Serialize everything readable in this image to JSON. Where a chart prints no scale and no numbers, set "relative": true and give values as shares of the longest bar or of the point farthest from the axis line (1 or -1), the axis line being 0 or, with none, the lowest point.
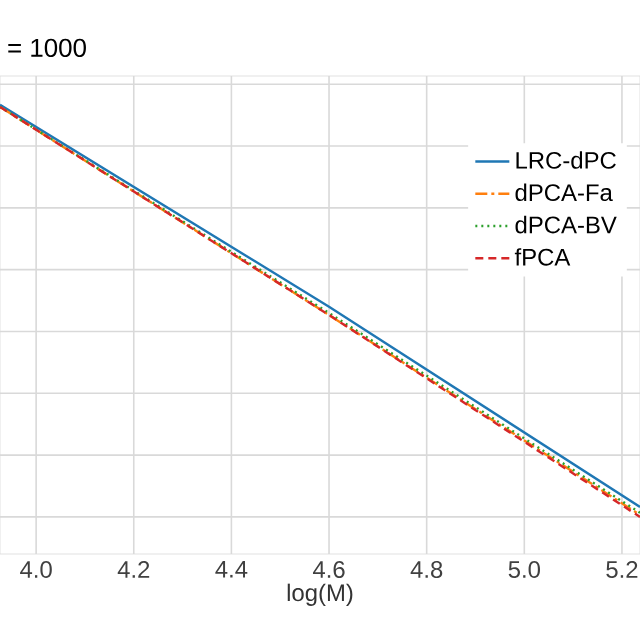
{
  "chart_data": {
    "type": "line",
    "title": "= 1000",
    "xlabel": "log(M)",
    "relative": true,
    "xlim": [
      3.926,
      5.237
    ],
    "xticks": [
      {
        "value": 4.0,
        "label": "4.0"
      },
      {
        "value": 4.2,
        "label": "4.2"
      },
      {
        "value": 4.4,
        "label": "4.4"
      },
      {
        "value": 4.6,
        "label": "4.6"
      },
      {
        "value": 4.8,
        "label": "4.8"
      },
      {
        "value": 5.0,
        "label": "5.0"
      },
      {
        "value": 5.2,
        "label": "5.2"
      }
    ],
    "x": [
      3.926,
      4.6,
      5.237
    ],
    "series": [
      {
        "name": "LRC-dPC",
        "color": "#1f77b4",
        "line_style": "solid",
        "values": [
          1,
          0.51,
          0.024
        ]
      },
      {
        "name": "dPCA-Fa",
        "color": "#ff7f0e",
        "line_style": "dashdot",
        "values": [
          0.995,
          0.49,
          0.005
        ]
      },
      {
        "name": "dPCA-BV",
        "color": "#2ca02c",
        "line_style": "dotted",
        "values": [
          0.995,
          0.495,
          0.01
        ]
      },
      {
        "name": "fPCA",
        "color": "#d62728",
        "line_style": "dashed",
        "values": [
          0.995,
          0.49,
          0
        ]
      }
    ],
    "grid": true,
    "legend": "top right",
    "marker": "none"
  }
}
